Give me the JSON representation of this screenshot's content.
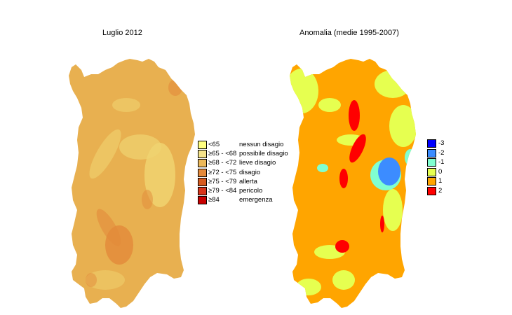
{
  "left_map": {
    "title": "Luglio 2012",
    "legend": [
      {
        "range": "<65",
        "label": "nessun disagio",
        "color": "#ffff80"
      },
      {
        "range": "≥65 - <68",
        "label": "possibile disagio",
        "color": "#f5e38a"
      },
      {
        "range": "≥68 - <72",
        "label": "lieve disagio",
        "color": "#ebb85a"
      },
      {
        "range": "≥72 - <75",
        "label": "disagio",
        "color": "#e4893a"
      },
      {
        "range": "≥75 - <79",
        "label": "allerta",
        "color": "#d65a1e"
      },
      {
        "range": "≥79 - <84",
        "label": "pericolo",
        "color": "#d8341a"
      },
      {
        "range": "≥84",
        "label": "emergenza",
        "color": "#c80000"
      }
    ]
  },
  "right_map": {
    "title": "Anomalia (medie 1995-2007)",
    "legend": [
      {
        "label": "-3",
        "color": "#0000ff"
      },
      {
        "label": "-2",
        "color": "#3c8cff"
      },
      {
        "label": "-1",
        "color": "#80ffd0"
      },
      {
        "label": "0",
        "color": "#e6ff50"
      },
      {
        "label": "1",
        "color": "#ffa500"
      },
      {
        "label": "2",
        "color": "#ff0000"
      }
    ]
  },
  "colors": {
    "left_base": "#e8b050",
    "left_light": "#f0d470",
    "left_dark": "#e28a3a",
    "right_base": "#ffa500",
    "right_green": "#e6ff50",
    "right_blue": "#3c8cff",
    "right_cyan": "#80ffd0",
    "right_red": "#ff0000"
  }
}
